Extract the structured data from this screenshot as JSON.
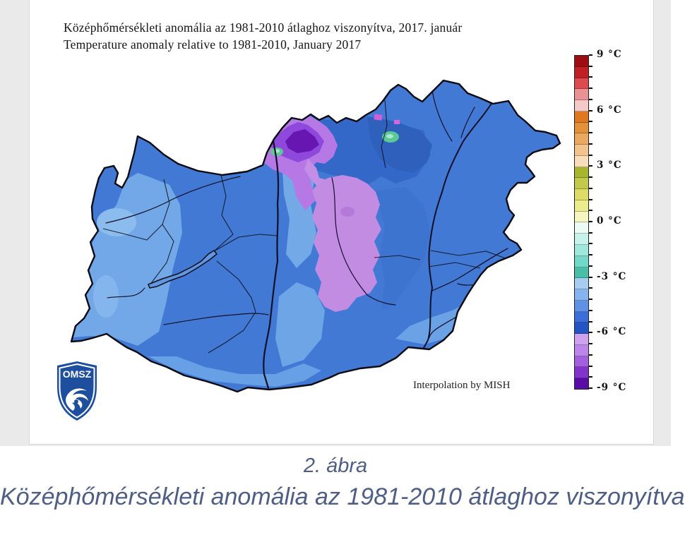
{
  "title": {
    "line1": "Középhőmérsékleti anomália az 1981-2010 átlaghoz viszonyítva, 2017. január",
    "line2": "Temperature anomaly relative to 1981-2010, January 2017"
  },
  "map": {
    "credit": "Interpolation by MISH",
    "logo_text": "OMSZ",
    "palette": {
      "base_blue": "#4279d4",
      "light_blue": "#6fa2e4",
      "lighter_blue": "#85b5ea",
      "dark_blue": "#2f62c2",
      "lavender_region": "#c28ce2",
      "violet_region": "#8f48dc",
      "dark_violet_core": "#6716b2",
      "magenta_specks": "#d05fd8",
      "mint_green_spots": "#5cc896",
      "border_lines": "#0d0d18",
      "logo_blue": "#1d4f9e"
    }
  },
  "colorbar": {
    "unit": "°C",
    "tick_labels": [
      "9 °C",
      "6 °C",
      "3 °C",
      "0 °C",
      "-3 °C",
      "-6 °C",
      "-9 °C"
    ],
    "tick_values": [
      9,
      6,
      3,
      0,
      -3,
      -6,
      -9
    ],
    "segment_colors": [
      "#9f0d12",
      "#c02025",
      "#dd4a50",
      "#ea9193",
      "#f6c9c9",
      "#e07820",
      "#e4913c",
      "#eaa95e",
      "#f2c38c",
      "#f9ddba",
      "#a8b62e",
      "#c3c94b",
      "#dcdc66",
      "#ecec8f",
      "#f8f6c0",
      "#edfbf6",
      "#c7f3ec",
      "#9fe8dc",
      "#72d8c8",
      "#49bfa8",
      "#a9cdf2",
      "#86b4ee",
      "#5f92e6",
      "#3a6ed8",
      "#2454c4",
      "#cfa2f0",
      "#bd85ea",
      "#a35fe0",
      "#8233cc",
      "#5a0ca6"
    ]
  },
  "caption": {
    "figure_label": "2. ábra",
    "text": "Középhőmérsékleti anomália az 1981-2010 átlaghoz viszonyítva"
  }
}
